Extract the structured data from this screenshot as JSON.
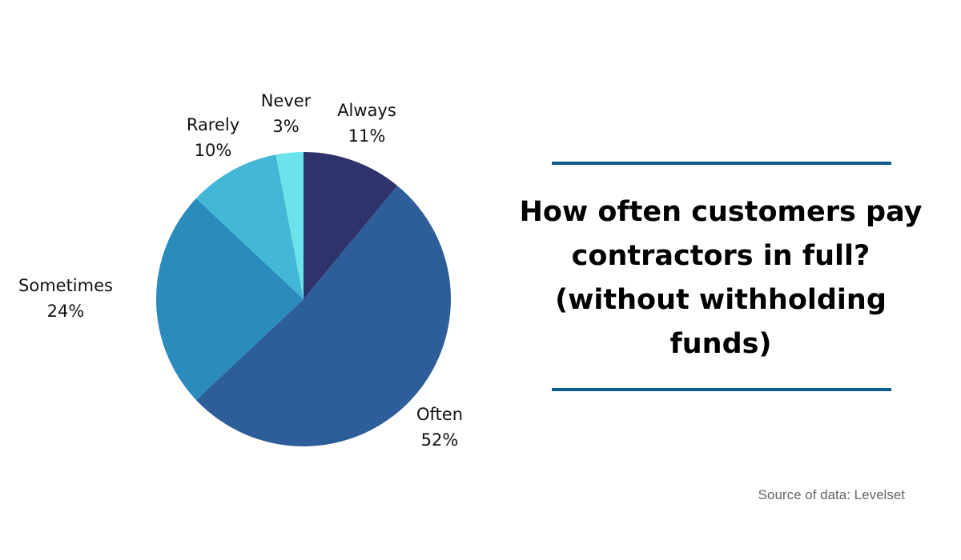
{
  "chart_data": {
    "type": "pie",
    "title": "How often customers pay contractors in full?\n(without withholding funds)",
    "start": "12 o'clock, clockwise",
    "slices": [
      {
        "label": "Always",
        "value": 11,
        "value_text": "11%",
        "color": "#2f336b"
      },
      {
        "label": "Often",
        "value": 52,
        "value_text": "52%",
        "color": "#2e5e99"
      },
      {
        "label": "Sometimes",
        "value": 24,
        "value_text": "24%",
        "color": "#2b8bbd"
      },
      {
        "label": "Rarely",
        "value": 10,
        "value_text": "10%",
        "color": "#43b7d6"
      },
      {
        "label": "Never",
        "value": 3,
        "value_text": "3%",
        "color": "#6ae3ea"
      }
    ]
  },
  "header": {
    "title": "How often customers pay contractors in full?\n(without withholding funds)"
  },
  "footer": {
    "source": "Source of data: Levelset"
  },
  "colors": {
    "rule": "#0e5a8a",
    "source_text": "#666666"
  }
}
